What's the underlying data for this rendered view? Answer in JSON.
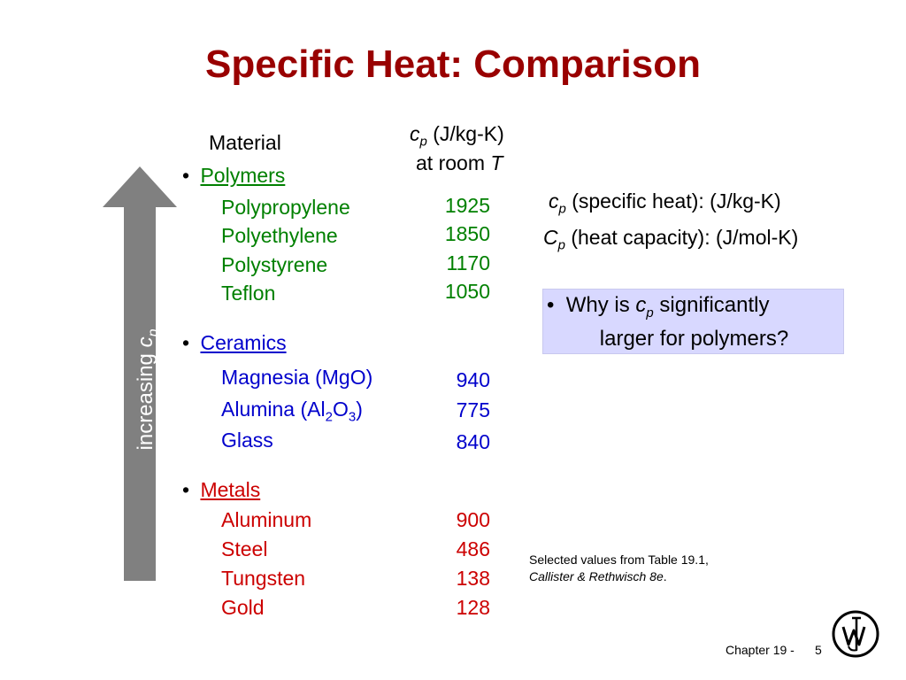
{
  "title": "Specific Heat:  Comparison",
  "colors": {
    "title": "#990000",
    "polymers": "#008000",
    "ceramics": "#0000cc",
    "metals": "#cc0000",
    "arrow": "#808080",
    "callout_bg": "#d8d8ff"
  },
  "headers": {
    "material": "Material",
    "cp_symbol": "c",
    "cp_sub": "p",
    "cp_units": " (J/kg-K)",
    "at_room": "at room ",
    "at_room_T": "T"
  },
  "arrow": {
    "label": "increasing ",
    "symbol": "c",
    "sub": "p"
  },
  "groups": {
    "polymers": {
      "label": "Polymers",
      "items": [
        {
          "name": "Polypropylene",
          "value": "1925"
        },
        {
          "name": "Polyethylene",
          "value": "1850"
        },
        {
          "name": "Polystyrene",
          "value": "1170"
        },
        {
          "name": "Teflon",
          "value": "1050"
        }
      ]
    },
    "ceramics": {
      "label": "Ceramics",
      "items": [
        {
          "name": "Magnesia (MgO)",
          "value": "940"
        },
        {
          "name_parts": [
            "Alumina (Al",
            "2",
            "O",
            "3",
            ")"
          ],
          "value": "775"
        },
        {
          "name": "Glass",
          "value": "840"
        }
      ]
    },
    "metals": {
      "label": "Metals",
      "items": [
        {
          "name": "Aluminum",
          "value": "900"
        },
        {
          "name": "Steel",
          "value": "486"
        },
        {
          "name": "Tungsten",
          "value": "138"
        },
        {
          "name": "Gold",
          "value": "128"
        }
      ]
    }
  },
  "definitions": {
    "line1": {
      "symbol": "c",
      "sub": "p",
      "text": " (specific heat):   (J/kg-K)"
    },
    "line2": {
      "symbol": "C",
      "sub": "p",
      "text": " (heat capacity):  (J/mol-K)"
    }
  },
  "callout": {
    "bullet": "•",
    "pre": "  Why is ",
    "symbol": "c",
    "sub": "p",
    "post": " significantly",
    "line2": "larger for polymers?"
  },
  "note": {
    "line1": "Selected values from Table 19.1,",
    "line2_italic": "Callister & Rethwisch 8e",
    "line2_end": "."
  },
  "footer": {
    "chapter": "Chapter 19 -",
    "page": "5"
  },
  "bullet_char": "•"
}
